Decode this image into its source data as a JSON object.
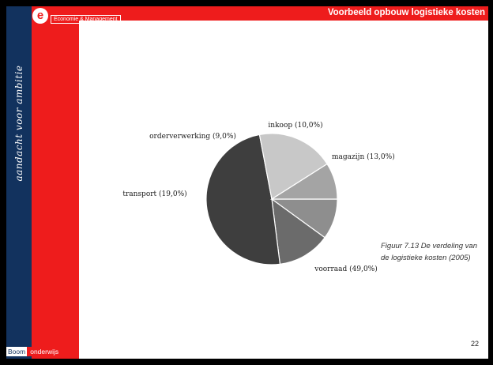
{
  "header": {
    "brand_mark": "e",
    "brand_label": "Economie & Management",
    "title": "Voorbeeld opbouw logistieke kosten"
  },
  "sidebar": {
    "tagline": "aandacht voor ambitie"
  },
  "footer": {
    "publisher_name": "Boom",
    "publisher_sub": "onderwijs"
  },
  "page_number": "22",
  "caption": {
    "line1": "Figuur 7.13   De verdeling van",
    "line2": "de logistieke kosten (2005)"
  },
  "colors": {
    "navy": "#12325e",
    "red": "#ee1c1c"
  },
  "chart_data": {
    "type": "pie",
    "title": "",
    "slices": [
      {
        "label": "inkoop (10,0%)",
        "value": 10,
        "color": "#8e8e8e"
      },
      {
        "label": "magazijn (13,0%)",
        "value": 13,
        "color": "#6b6b6b"
      },
      {
        "label": "voorraad (49,0%)",
        "value": 49,
        "color": "#3e3e3e"
      },
      {
        "label": "transport (19,0%)",
        "value": 19,
        "color": "#c8c8c8"
      },
      {
        "label": "orderverwerking (9,0%)",
        "value": 9,
        "color": "#a4a4a4"
      }
    ]
  }
}
